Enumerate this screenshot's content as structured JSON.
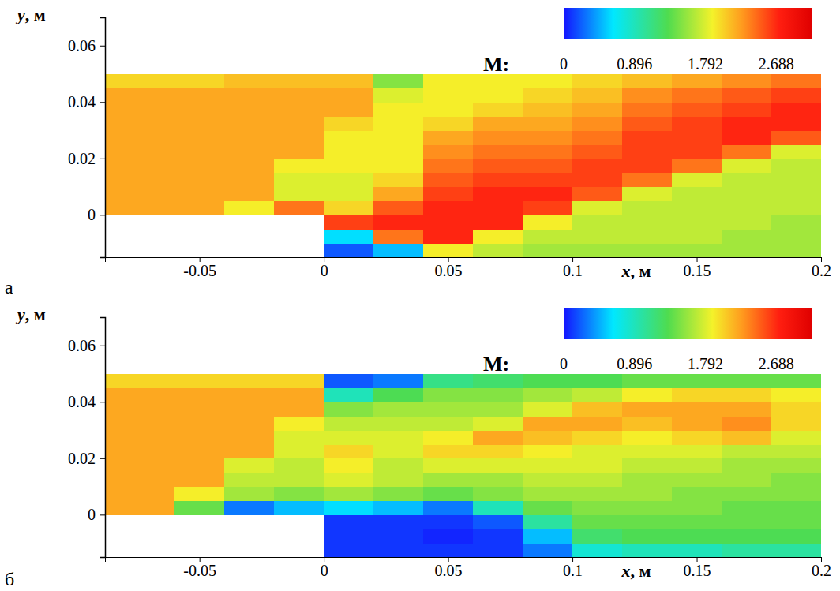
{
  "chart_data": [
    {
      "type": "heatmap",
      "panel": "а",
      "x_label": "x, м",
      "y_label": "y, м",
      "xlim": [
        -0.088,
        0.2
      ],
      "ylim": [
        -0.015,
        0.07
      ],
      "xticks": [
        -0.05,
        0,
        0.05,
        0.1,
        0.15,
        0.2
      ],
      "yticks": [
        0,
        0.02,
        0.04,
        0.06
      ],
      "x_edges": [
        -0.088,
        -0.06,
        -0.04,
        -0.02,
        0,
        0.02,
        0.04,
        0.06,
        0.08,
        0.1,
        0.12,
        0.14,
        0.16,
        0.18,
        0.2
      ],
      "y_edges": [
        -0.015,
        -0.01,
        -0.005,
        0,
        0.005,
        0.01,
        0.015,
        0.02,
        0.025,
        0.03,
        0.035,
        0.04,
        0.045,
        0.05
      ],
      "cells": [
        [
          null,
          null,
          null,
          null,
          0.2,
          0.5,
          1.9,
          1.7,
          1.6,
          1.6,
          1.6,
          1.6,
          1.6,
          1.6
        ],
        [
          null,
          null,
          null,
          null,
          0.6,
          2.4,
          2.7,
          1.9,
          1.7,
          1.7,
          1.7,
          1.7,
          1.6,
          1.6
        ],
        [
          null,
          null,
          null,
          null,
          2.6,
          2.7,
          2.7,
          2.7,
          1.9,
          1.7,
          1.7,
          1.7,
          1.7,
          1.6
        ],
        [
          2.2,
          2.2,
          1.9,
          2.4,
          2.0,
          2.5,
          2.7,
          2.7,
          2.6,
          1.8,
          1.7,
          1.7,
          1.7,
          1.7
        ],
        [
          2.2,
          2.2,
          2.2,
          1.8,
          1.8,
          2.2,
          2.6,
          2.7,
          2.7,
          2.5,
          1.8,
          1.7,
          1.7,
          1.7
        ],
        [
          2.2,
          2.2,
          2.2,
          1.8,
          1.8,
          2.0,
          2.5,
          2.6,
          2.6,
          2.6,
          2.4,
          1.8,
          1.7,
          1.7
        ],
        [
          2.2,
          2.2,
          2.2,
          1.9,
          1.9,
          1.9,
          2.4,
          2.5,
          2.5,
          2.6,
          2.6,
          2.4,
          1.8,
          1.7
        ],
        [
          2.2,
          2.2,
          2.2,
          2.2,
          1.9,
          1.9,
          2.3,
          2.4,
          2.4,
          2.5,
          2.6,
          2.6,
          2.4,
          1.8
        ],
        [
          2.2,
          2.2,
          2.2,
          2.2,
          1.9,
          1.9,
          2.2,
          2.3,
          2.3,
          2.4,
          2.6,
          2.6,
          2.7,
          2.5
        ],
        [
          2.2,
          2.2,
          2.2,
          2.2,
          2.0,
          1.9,
          2.0,
          2.2,
          2.2,
          2.3,
          2.5,
          2.6,
          2.7,
          2.7
        ],
        [
          2.2,
          2.2,
          2.2,
          2.2,
          2.2,
          1.9,
          1.9,
          2.0,
          2.1,
          2.2,
          2.4,
          2.5,
          2.6,
          2.7
        ],
        [
          2.2,
          2.2,
          2.2,
          2.2,
          2.2,
          1.8,
          1.9,
          1.9,
          2.0,
          2.1,
          2.3,
          2.4,
          2.5,
          2.6
        ],
        [
          2.0,
          2.0,
          2.1,
          2.1,
          2.1,
          1.5,
          1.9,
          1.9,
          1.9,
          2.0,
          2.1,
          2.2,
          2.3,
          2.4
        ]
      ],
      "colorbar": {
        "label": "M:",
        "range": [
          0,
          3.136
        ],
        "ticks": [
          0,
          0.896,
          1.792,
          2.688
        ]
      }
    },
    {
      "type": "heatmap",
      "panel": "б",
      "x_label": "x, м",
      "y_label": "y, м",
      "xlim": [
        -0.088,
        0.2
      ],
      "ylim": [
        -0.015,
        0.07
      ],
      "xticks": [
        -0.05,
        0,
        0.05,
        0.1,
        0.15,
        0.2
      ],
      "yticks": [
        0,
        0.02,
        0.04,
        0.06
      ],
      "x_edges": [
        -0.088,
        -0.06,
        -0.04,
        -0.02,
        0,
        0.02,
        0.04,
        0.06,
        0.08,
        0.1,
        0.12,
        0.14,
        0.16,
        0.18,
        0.2
      ],
      "y_edges": [
        -0.015,
        -0.01,
        -0.005,
        0,
        0.005,
        0.01,
        0.015,
        0.02,
        0.025,
        0.03,
        0.035,
        0.04,
        0.045,
        0.05
      ],
      "cells": [
        [
          null,
          null,
          null,
          null,
          0.1,
          0.1,
          0.1,
          0.1,
          0.3,
          0.8,
          0.9,
          0.9,
          1.0,
          1.0
        ],
        [
          null,
          null,
          null,
          null,
          0.1,
          0.1,
          0.05,
          0.1,
          0.5,
          1.2,
          1.3,
          1.3,
          1.3,
          1.3
        ],
        [
          null,
          null,
          null,
          null,
          0.1,
          0.1,
          0.1,
          0.2,
          1.0,
          1.4,
          1.4,
          1.4,
          1.4,
          1.4
        ],
        [
          2.2,
          1.4,
          0.3,
          0.5,
          0.6,
          0.5,
          0.3,
          0.9,
          1.4,
          1.5,
          1.5,
          1.5,
          1.4,
          1.4
        ],
        [
          2.2,
          1.9,
          1.6,
          1.5,
          1.6,
          1.5,
          1.4,
          1.5,
          1.6,
          1.6,
          1.6,
          1.5,
          1.5,
          1.5
        ],
        [
          2.2,
          2.2,
          1.7,
          1.7,
          1.8,
          1.7,
          1.6,
          1.6,
          1.7,
          1.7,
          1.6,
          1.6,
          1.6,
          1.5
        ],
        [
          2.2,
          2.2,
          1.8,
          1.7,
          1.9,
          1.7,
          1.8,
          1.8,
          1.8,
          1.8,
          1.7,
          1.7,
          1.6,
          1.6
        ],
        [
          2.2,
          2.2,
          2.2,
          1.8,
          2.0,
          1.8,
          2.0,
          2.0,
          1.9,
          1.8,
          1.8,
          1.8,
          1.7,
          1.7
        ],
        [
          2.2,
          2.2,
          2.2,
          1.8,
          1.8,
          1.8,
          1.9,
          2.2,
          2.1,
          2.0,
          1.9,
          2.0,
          2.1,
          1.8
        ],
        [
          2.2,
          2.2,
          2.2,
          1.9,
          1.7,
          1.7,
          1.7,
          1.8,
          2.2,
          2.2,
          2.1,
          2.2,
          2.3,
          2.0
        ],
        [
          2.2,
          2.2,
          2.2,
          2.2,
          1.5,
          1.6,
          1.6,
          1.6,
          1.8,
          2.1,
          2.2,
          2.2,
          2.2,
          2.0
        ],
        [
          2.2,
          2.2,
          2.2,
          2.2,
          0.9,
          1.3,
          1.5,
          1.5,
          1.6,
          1.7,
          1.9,
          2.0,
          2.0,
          1.9
        ],
        [
          2.0,
          2.0,
          2.0,
          2.0,
          0.2,
          0.3,
          1.1,
          1.2,
          1.3,
          1.3,
          1.4,
          1.4,
          1.4,
          1.4
        ]
      ],
      "colorbar": {
        "label": "M:",
        "range": [
          0,
          3.136
        ],
        "ticks": [
          0,
          0.896,
          1.792,
          2.688
        ]
      }
    }
  ]
}
